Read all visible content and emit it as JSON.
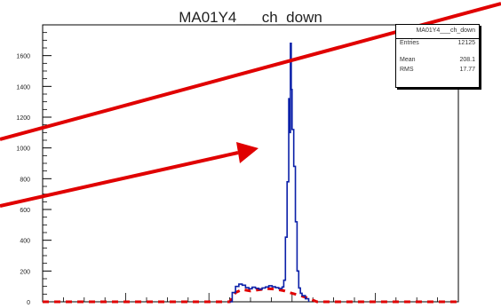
{
  "chart_data": {
    "type": "histogram",
    "title": "MA01Y4___ch_down",
    "xlabel": "",
    "ylabel": "",
    "xlim": [
      0,
      500
    ],
    "ylim": [
      0,
      1800
    ],
    "yticks": [
      0,
      200,
      400,
      600,
      800,
      1000,
      1200,
      1400,
      1600
    ],
    "grid": false,
    "series": [
      {
        "style": "step",
        "color": "#0a1fa8",
        "bins": [
          [
            0,
            0
          ],
          [
            10,
            0
          ],
          [
            20,
            0
          ],
          [
            30,
            0
          ],
          [
            40,
            0
          ],
          [
            50,
            0
          ],
          [
            60,
            0
          ],
          [
            70,
            0
          ],
          [
            80,
            0
          ],
          [
            90,
            0
          ],
          [
            100,
            0
          ],
          [
            110,
            0
          ],
          [
            120,
            0
          ],
          [
            130,
            0
          ],
          [
            140,
            0
          ],
          [
            150,
            0
          ],
          [
            160,
            0
          ],
          [
            170,
            0
          ],
          [
            180,
            0
          ],
          [
            190,
            0
          ],
          [
            200,
            0
          ],
          [
            210,
            0
          ],
          [
            220,
            0
          ],
          [
            230,
            0
          ],
          [
            240,
            0
          ],
          [
            250,
            0
          ],
          [
            260,
            0
          ],
          [
            270,
            0
          ],
          [
            280,
            0
          ],
          [
            290,
            0
          ],
          [
            300,
            0
          ],
          [
            310,
            0
          ],
          [
            320,
            0
          ],
          [
            330,
            0
          ],
          [
            340,
            0
          ],
          [
            350,
            0
          ],
          [
            360,
            0
          ],
          [
            370,
            0
          ],
          [
            380,
            0
          ],
          [
            390,
            0
          ],
          [
            400,
            0
          ],
          [
            410,
            0
          ],
          [
            420,
            0
          ],
          [
            430,
            0
          ],
          [
            440,
            0
          ],
          [
            450,
            0
          ],
          [
            460,
            0
          ],
          [
            470,
            0
          ],
          [
            480,
            0
          ],
          [
            490,
            0
          ]
        ],
        "points": [
          [
            225,
            0
          ],
          [
            228,
            60
          ],
          [
            232,
            100
          ],
          [
            236,
            115
          ],
          [
            240,
            108
          ],
          [
            244,
            92
          ],
          [
            248,
            85
          ],
          [
            252,
            95
          ],
          [
            256,
            88
          ],
          [
            260,
            82
          ],
          [
            264,
            90
          ],
          [
            268,
            96
          ],
          [
            272,
            104
          ],
          [
            276,
            98
          ],
          [
            280,
            92
          ],
          [
            284,
            86
          ],
          [
            288,
            96
          ],
          [
            290,
            140
          ],
          [
            292,
            420
          ],
          [
            294,
            780
          ],
          [
            296,
            1320
          ],
          [
            297,
            1100
          ],
          [
            298,
            1680
          ],
          [
            299,
            1380
          ],
          [
            300,
            1120
          ],
          [
            302,
            880
          ],
          [
            304,
            520
          ],
          [
            306,
            200
          ],
          [
            308,
            90
          ],
          [
            310,
            55
          ],
          [
            312,
            40
          ],
          [
            316,
            20
          ],
          [
            320,
            0
          ]
        ]
      },
      {
        "style": "dashed",
        "color": "#e00000",
        "points": [
          [
            0,
            0
          ],
          [
            100,
            0
          ],
          [
            200,
            0
          ],
          [
            225,
            0
          ],
          [
            232,
            60
          ],
          [
            240,
            80
          ],
          [
            250,
            70
          ],
          [
            260,
            78
          ],
          [
            270,
            85
          ],
          [
            280,
            82
          ],
          [
            290,
            72
          ],
          [
            300,
            55
          ],
          [
            310,
            40
          ],
          [
            320,
            22
          ],
          [
            330,
            0
          ],
          [
            500,
            0
          ]
        ]
      }
    ],
    "stats": {
      "header": "MA01Y4___ch_down",
      "entries_label": "Entries",
      "entries": "12125",
      "mean_label": "Mean",
      "mean": "208.1",
      "rms_label": "RMS",
      "rms": "17.77"
    },
    "annotations": {
      "line_color": "#e00000",
      "arrow_color": "#e00000"
    }
  }
}
